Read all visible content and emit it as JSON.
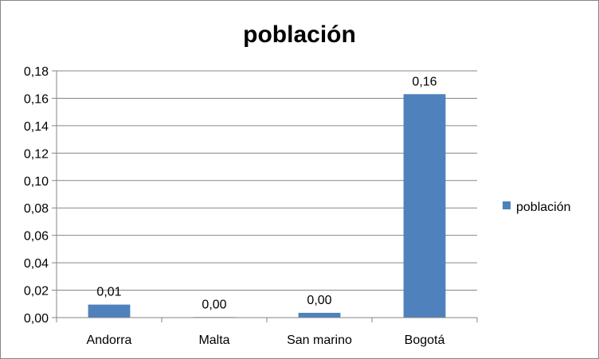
{
  "chart_data": {
    "type": "bar",
    "title": "población",
    "categories": [
      "Andorra",
      "Malta",
      "San marino",
      "Bogotá"
    ],
    "series": [
      {
        "name": "población",
        "values": [
          0.0095,
          0.0004,
          0.0035,
          0.163
        ],
        "labels": [
          "0,01",
          "0,00",
          "0,00",
          "0,16"
        ]
      }
    ],
    "ylim": [
      0,
      0.18
    ],
    "yticks": [
      "0,00",
      "0,02",
      "0,04",
      "0,06",
      "0,08",
      "0,10",
      "0,12",
      "0,14",
      "0,16",
      "0,18"
    ],
    "ytick_values": [
      0,
      0.02,
      0.04,
      0.06,
      0.08,
      0.1,
      0.12,
      0.14,
      0.16,
      0.18
    ],
    "grid": true,
    "legend": "right",
    "colors": {
      "bar": "#4f81bd",
      "grid": "#868686",
      "axis": "#868686"
    }
  }
}
